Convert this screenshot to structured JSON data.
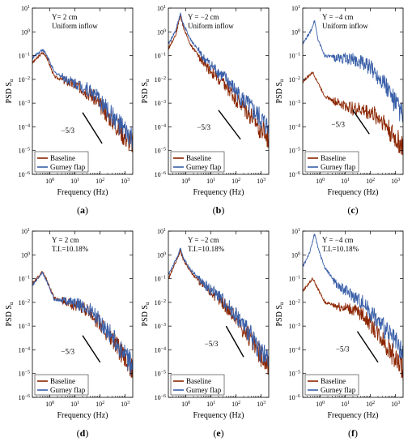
{
  "figure": {
    "legend_labels": [
      "Baseline",
      "Gurney flap"
    ],
    "colors": {
      "baseline": "#8b2500",
      "gurney": "#3a5fa8",
      "noise": "#ff33cc"
    },
    "xlabel": "Frequency (Hz)",
    "ylabel_main": "PSD S",
    "ylabel_sub": "u"
  },
  "chart_data": [
    {
      "type": "line",
      "panel_label": "(a)",
      "title_lines": [
        "Y= 2 cm",
        "Uniform inflow"
      ],
      "xlabel": "Frequency (Hz)",
      "ylabel": "PSD Su",
      "xscale": "log",
      "yscale": "log",
      "xlim": [
        0.2,
        2000
      ],
      "ylim": [
        1e-06,
        10
      ],
      "xticks": [
        1,
        10,
        100,
        1000
      ],
      "xtick_labels": [
        "10^0",
        "10^1",
        "10^2",
        "10^3"
      ],
      "yticks": [
        1e-06,
        1e-05,
        0.0001,
        0.001,
        0.01,
        0.1,
        1,
        10
      ],
      "ytick_labels": [
        "10^-6",
        "10^-5",
        "10^-4",
        "10^-3",
        "10^-2",
        "10^-1",
        "10^0",
        "10^1"
      ],
      "slope_label": "−5/3",
      "slope_line": {
        "x": [
          20,
          120
        ],
        "y": [
          0.0004,
          2e-05
        ]
      },
      "legend_position": "bottom-left",
      "series": [
        {
          "name": "Baseline",
          "x": [
            0.2,
            0.5,
            0.7,
            1.5,
            5,
            20,
            50,
            100,
            300,
            1000,
            2000
          ],
          "y": [
            0.05,
            0.13,
            0.1,
            0.013,
            0.008,
            0.004,
            0.002,
            0.0008,
            0.0002,
            4e-05,
            2e-05
          ]
        },
        {
          "name": "Gurney flap",
          "x": [
            0.2,
            0.5,
            0.7,
            1.5,
            5,
            20,
            50,
            100,
            300,
            1000,
            2000
          ],
          "y": [
            0.08,
            0.18,
            0.12,
            0.02,
            0.01,
            0.005,
            0.003,
            0.0012,
            0.0003,
            6e-05,
            3e-05
          ]
        }
      ]
    },
    {
      "type": "line",
      "panel_label": "(b)",
      "title_lines": [
        "Y = −2 cm",
        "Uniform inflow"
      ],
      "xlabel": "Frequency (Hz)",
      "ylabel": "PSD Su",
      "xscale": "log",
      "yscale": "log",
      "xlim": [
        0.2,
        2000
      ],
      "ylim": [
        1e-06,
        10
      ],
      "xticks": [
        1,
        10,
        100,
        1000
      ],
      "xtick_labels": [
        "10^0",
        "10^1",
        "10^2",
        "10^3"
      ],
      "yticks": [
        1e-06,
        1e-05,
        0.0001,
        0.001,
        0.01,
        0.1,
        1,
        10
      ],
      "ytick_labels": [
        "10^-6",
        "10^-5",
        "10^-4",
        "10^-3",
        "10^-2",
        "10^-1",
        "10^0",
        "10^1"
      ],
      "slope_label": "−5/3",
      "slope_line": {
        "x": [
          20,
          150
        ],
        "y": [
          0.0005,
          3e-05
        ]
      },
      "legend_position": "bottom-left",
      "series": [
        {
          "name": "Baseline",
          "x": [
            0.2,
            0.4,
            0.6,
            0.8,
            1.5,
            5,
            20,
            50,
            100,
            300,
            1000,
            2000
          ],
          "y": [
            0.2,
            0.8,
            5,
            1.5,
            0.3,
            0.05,
            0.01,
            0.004,
            0.0015,
            0.0004,
            8e-05,
            3e-05
          ]
        },
        {
          "name": "Gurney flap",
          "x": [
            0.2,
            0.4,
            0.6,
            0.8,
            1.5,
            5,
            20,
            50,
            100,
            300,
            1000,
            2000
          ],
          "y": [
            0.3,
            1.2,
            6,
            2,
            0.5,
            0.08,
            0.02,
            0.008,
            0.003,
            0.0008,
            0.0002,
            8e-05
          ]
        }
      ]
    },
    {
      "type": "line",
      "panel_label": "(c)",
      "title_lines": [
        "Y = −4 cm",
        "Uniform inflow"
      ],
      "xlabel": "Frequency (Hz)",
      "ylabel": "PSD Su",
      "xscale": "log",
      "yscale": "log",
      "xlim": [
        0.2,
        2000
      ],
      "ylim": [
        1e-06,
        10
      ],
      "xticks": [
        1,
        10,
        100,
        1000
      ],
      "xtick_labels": [
        "10^0",
        "10^1",
        "10^2",
        "10^3"
      ],
      "yticks": [
        1e-06,
        1e-05,
        0.0001,
        0.001,
        0.01,
        0.1,
        1,
        10
      ],
      "ytick_labels": [
        "10^-6",
        "10^-5",
        "10^-4",
        "10^-3",
        "10^-2",
        "10^-1",
        "10^0",
        "10^1"
      ],
      "slope_label": "−5/3",
      "slope_line": {
        "x": [
          20,
          90
        ],
        "y": [
          0.0005,
          5e-05
        ]
      },
      "legend_position": "bottom-left",
      "series": [
        {
          "name": "Baseline",
          "x": [
            0.2,
            0.5,
            0.7,
            1.5,
            5,
            20,
            50,
            100,
            300,
            1000,
            2000
          ],
          "y": [
            0.008,
            0.02,
            0.01,
            0.002,
            0.001,
            0.0006,
            0.0005,
            0.0004,
            0.0002,
            3e-05,
            1.5e-05
          ]
        },
        {
          "name": "Gurney flap",
          "x": [
            0.2,
            0.4,
            0.6,
            0.8,
            1.5,
            5,
            20,
            50,
            100,
            300,
            1000,
            2000
          ],
          "y": [
            0.3,
            1,
            3,
            0.5,
            0.1,
            0.08,
            0.07,
            0.05,
            0.03,
            0.01,
            0.001,
            0.0003
          ]
        }
      ]
    },
    {
      "type": "line",
      "panel_label": "(d)",
      "title_lines": [
        "Y = 2 cm",
        "T.I.=10.18%"
      ],
      "xlabel": "Frequency (Hz)",
      "ylabel": "PSD Su",
      "xscale": "log",
      "yscale": "log",
      "xlim": [
        0.2,
        2000
      ],
      "ylim": [
        1e-06,
        10
      ],
      "xticks": [
        1,
        10,
        100,
        1000
      ],
      "xtick_labels": [
        "10^0",
        "10^1",
        "10^2",
        "10^3"
      ],
      "yticks": [
        1e-06,
        1e-05,
        0.0001,
        0.001,
        0.01,
        0.1,
        1,
        10
      ],
      "ytick_labels": [
        "10^-6",
        "10^-5",
        "10^-4",
        "10^-3",
        "10^-2",
        "10^-1",
        "10^0",
        "10^1"
      ],
      "slope_label": "−5/3",
      "slope_line": {
        "x": [
          20,
          100
        ],
        "y": [
          0.0004,
          3e-05
        ]
      },
      "legend_position": "bottom-left",
      "series": [
        {
          "name": "Baseline",
          "x": [
            0.2,
            0.5,
            0.7,
            1.5,
            5,
            20,
            50,
            100,
            300,
            1000,
            2000
          ],
          "y": [
            0.06,
            0.2,
            0.1,
            0.015,
            0.01,
            0.006,
            0.003,
            0.0012,
            0.0003,
            4e-05,
            1.5e-05
          ]
        },
        {
          "name": "Gurney flap",
          "x": [
            0.2,
            0.5,
            0.7,
            1.5,
            5,
            20,
            50,
            100,
            300,
            1000,
            2000
          ],
          "y": [
            0.05,
            0.18,
            0.09,
            0.013,
            0.012,
            0.007,
            0.004,
            0.0015,
            0.0004,
            5e-05,
            2e-05
          ]
        }
      ]
    },
    {
      "type": "line",
      "panel_label": "(e)",
      "title_lines": [
        "Y = −2 cm",
        "T.I.=10.18%"
      ],
      "xlabel": "Frequency (Hz)",
      "ylabel": "PSD Su",
      "xscale": "log",
      "yscale": "log",
      "xlim": [
        0.2,
        2000
      ],
      "ylim": [
        1e-06,
        10
      ],
      "xticks": [
        1,
        10,
        100,
        1000
      ],
      "xtick_labels": [
        "10^0",
        "10^1",
        "10^2",
        "10^3"
      ],
      "yticks": [
        1e-06,
        1e-05,
        0.0001,
        0.001,
        0.01,
        0.1,
        1,
        10
      ],
      "ytick_labels": [
        "10^-6",
        "10^-5",
        "10^-4",
        "10^-3",
        "10^-2",
        "10^-1",
        "10^0",
        "10^1"
      ],
      "slope_label": "−5/3",
      "slope_line": {
        "x": [
          40,
          200
        ],
        "y": [
          0.001,
          5e-05
        ]
      },
      "legend_position": "bottom-left",
      "series": [
        {
          "name": "Baseline",
          "x": [
            0.2,
            0.4,
            0.6,
            0.8,
            1.5,
            5,
            20,
            50,
            100,
            300,
            1000,
            2000
          ],
          "y": [
            0.1,
            0.5,
            1.5,
            0.6,
            0.2,
            0.05,
            0.015,
            0.005,
            0.002,
            0.0004,
            5e-05,
            2e-05
          ]
        },
        {
          "name": "Gurney flap",
          "x": [
            0.2,
            0.4,
            0.6,
            0.8,
            1.5,
            5,
            20,
            50,
            100,
            300,
            1000,
            2000
          ],
          "y": [
            0.15,
            0.6,
            1.8,
            0.7,
            0.25,
            0.06,
            0.02,
            0.007,
            0.003,
            0.0006,
            8e-05,
            3e-05
          ]
        }
      ]
    },
    {
      "type": "line",
      "panel_label": "(f)",
      "title_lines": [
        "Y = −4 cm",
        "T.I.=10.18%"
      ],
      "xlabel": "Frequency (Hz)",
      "ylabel": "PSD Su",
      "xscale": "log",
      "yscale": "log",
      "xlim": [
        0.2,
        2000
      ],
      "ylim": [
        1e-06,
        10
      ],
      "xticks": [
        1,
        10,
        100,
        1000
      ],
      "xtick_labels": [
        "10^0",
        "10^1",
        "10^2",
        "10^3"
      ],
      "yticks": [
        1e-06,
        1e-05,
        0.0001,
        0.001,
        0.01,
        0.1,
        1,
        10
      ],
      "ytick_labels": [
        "10^-6",
        "10^-5",
        "10^-4",
        "10^-3",
        "10^-2",
        "10^-1",
        "10^0",
        "10^1"
      ],
      "slope_label": "−5/3",
      "slope_line": {
        "x": [
          30,
          200
        ],
        "y": [
          0.0006,
          3e-05
        ]
      },
      "legend_position": "bottom-left",
      "series": [
        {
          "name": "Baseline",
          "x": [
            0.2,
            0.5,
            0.7,
            1.5,
            5,
            20,
            50,
            100,
            300,
            1000,
            2000
          ],
          "y": [
            0.03,
            0.1,
            0.05,
            0.01,
            0.007,
            0.005,
            0.003,
            0.0012,
            0.0003,
            4e-05,
            1.5e-05
          ]
        },
        {
          "name": "Gurney flap",
          "x": [
            0.2,
            0.4,
            0.6,
            0.8,
            1.5,
            5,
            20,
            50,
            100,
            300,
            1000,
            2000
          ],
          "y": [
            0.3,
            1.5,
            8,
            2,
            0.3,
            0.05,
            0.02,
            0.01,
            0.004,
            0.001,
            0.0002,
            6e-05
          ]
        }
      ]
    }
  ]
}
